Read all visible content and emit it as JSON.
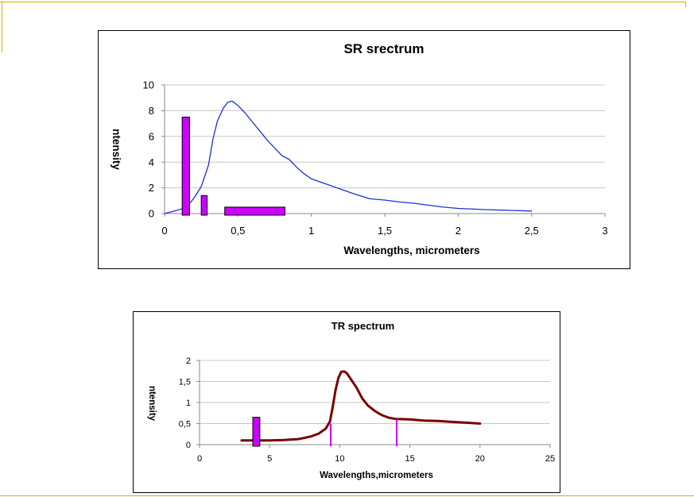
{
  "colors": {
    "frame": "#d4b000",
    "sr_curve": "#1f2fd6",
    "tr_curve": "#7a0000",
    "band_fill": "#cc00ff",
    "grid": "#c8c8c8"
  },
  "chart_data": [
    {
      "type": "line",
      "title": "SR srectrum",
      "xlabel": "Wavelengths, micrometers",
      "ylabel": "ntensity",
      "xlim": [
        0,
        3
      ],
      "ylim": [
        0,
        10
      ],
      "x_ticks": [
        "0",
        "0,5",
        "1",
        "1,5",
        "2",
        "2,5",
        "3"
      ],
      "y_ticks": [
        "0",
        "2",
        "4",
        "6",
        "8",
        "10"
      ],
      "grid": true,
      "series": [
        {
          "x": [
            0,
            0.1,
            0.15,
            0.2,
            0.25,
            0.3,
            0.33,
            0.36,
            0.4,
            0.43,
            0.46,
            0.5,
            0.55,
            0.6,
            0.65,
            0.7,
            0.75,
            0.8,
            0.85,
            0.9,
            0.95,
            1.0,
            1.1,
            1.2,
            1.3,
            1.4,
            1.5,
            1.6,
            1.7,
            1.8,
            1.9,
            2.0,
            2.2,
            2.5
          ],
          "y": [
            0,
            0.3,
            0.5,
            1.2,
            2.1,
            3.8,
            5.8,
            7.2,
            8.2,
            8.65,
            8.75,
            8.4,
            7.8,
            7.1,
            6.4,
            5.7,
            5.1,
            4.5,
            4.2,
            3.6,
            3.1,
            2.7,
            2.3,
            1.9,
            1.5,
            1.15,
            1.05,
            0.9,
            0.8,
            0.65,
            0.5,
            0.4,
            0.3,
            0.2
          ]
        }
      ],
      "bands": [
        {
          "x0": 0.12,
          "x1": 0.17,
          "height": 7.5
        },
        {
          "x0": 0.25,
          "x1": 0.29,
          "height": 1.4
        },
        {
          "x0": 0.41,
          "x1": 0.82,
          "height": 0.5
        }
      ]
    },
    {
      "type": "line",
      "title": "TR spectrum",
      "xlabel": "Wavelengths,micrometers",
      "ylabel": "ntensity",
      "xlim": [
        0,
        25
      ],
      "ylim": [
        0,
        2
      ],
      "x_ticks": [
        "0",
        "5",
        "10",
        "15",
        "20",
        "25"
      ],
      "y_ticks": [
        "0",
        "0,5",
        "1",
        "1,5",
        "2"
      ],
      "grid": true,
      "series": [
        {
          "x": [
            3,
            4,
            5,
            6,
            7,
            7.5,
            8,
            8.5,
            9,
            9.3,
            9.5,
            9.7,
            9.9,
            10.1,
            10.3,
            10.5,
            10.8,
            11.2,
            11.6,
            12,
            12.5,
            13,
            13.5,
            14,
            15,
            16,
            17,
            18,
            19,
            20
          ],
          "y": [
            0.1,
            0.1,
            0.1,
            0.11,
            0.13,
            0.16,
            0.2,
            0.26,
            0.38,
            0.55,
            0.9,
            1.3,
            1.58,
            1.73,
            1.74,
            1.7,
            1.55,
            1.35,
            1.1,
            0.93,
            0.8,
            0.7,
            0.64,
            0.61,
            0.6,
            0.57,
            0.56,
            0.54,
            0.52,
            0.5
          ]
        }
      ],
      "bands": [
        {
          "x0": 3.8,
          "x1": 4.3,
          "height": 0.65
        },
        {
          "x0": 9.3,
          "x1": 9.4,
          "height": 0.5
        },
        {
          "x0": 14.0,
          "x1": 14.1,
          "height": 0.6
        }
      ]
    }
  ]
}
